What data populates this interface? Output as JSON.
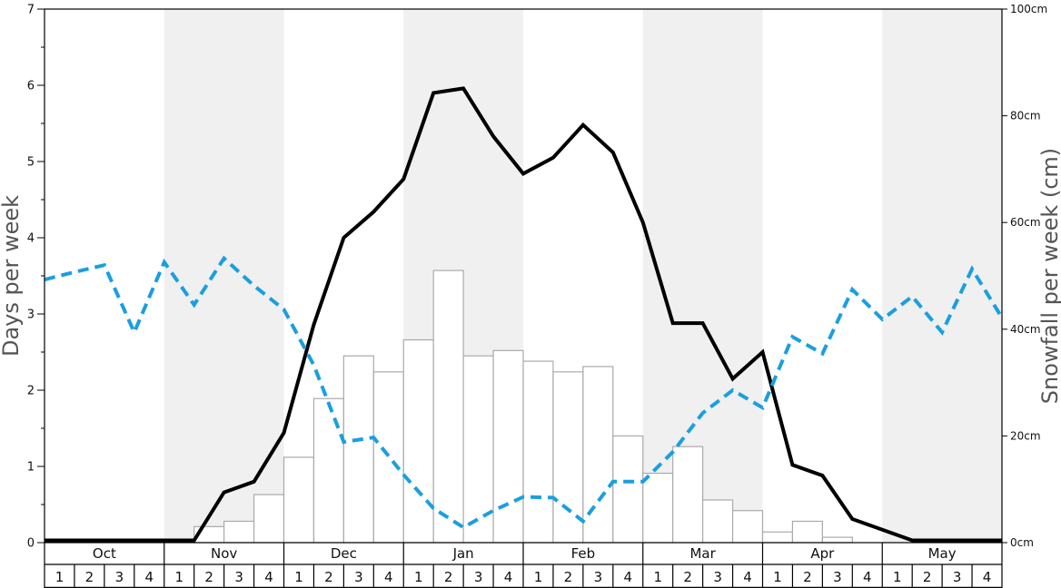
{
  "chart_data": {
    "type": "bar",
    "ylabel": "Days per week",
    "y2label": "Snowfall per week (cm)",
    "ylim": [
      0,
      7
    ],
    "y2lim": [
      0,
      100
    ],
    "yticks": [
      "0",
      "1",
      "2",
      "3",
      "4",
      "5",
      "6",
      "7"
    ],
    "y2ticks": [
      "0cm",
      "20cm",
      "40cm",
      "60cm",
      "80cm",
      "100cm"
    ],
    "months": [
      "Oct",
      "Nov",
      "Dec",
      "Jan",
      "Feb",
      "Mar",
      "Apr",
      "May"
    ],
    "weeks": [
      "1",
      "2",
      "3",
      "4"
    ],
    "shaded_months": [
      "Nov",
      "Jan",
      "Mar",
      "May"
    ],
    "snowfall_cm": [
      0,
      0,
      0,
      0,
      0,
      3,
      4,
      9,
      16,
      27,
      35,
      32,
      38,
      51,
      35,
      36,
      34,
      32,
      33,
      20,
      13,
      18,
      8,
      6,
      2,
      4,
      1,
      0,
      0,
      0,
      0,
      0
    ],
    "series": [
      {
        "style": "solid-black",
        "axis": "left",
        "values": [
          0.03,
          0.03,
          0.03,
          0.03,
          0.03,
          0.03,
          0.66,
          0.8,
          1.44,
          2.86,
          4.0,
          4.34,
          4.77,
          5.9,
          5.96,
          5.33,
          4.84,
          5.05,
          5.48,
          5.12,
          4.2,
          2.88,
          2.88,
          2.15,
          2.5,
          1.02,
          0.88,
          0.31,
          0.17,
          0.03,
          0.03,
          0.03,
          0.03
        ]
      },
      {
        "style": "dashed-blue",
        "axis": "left",
        "values": [
          3.45,
          3.55,
          3.64,
          2.76,
          3.68,
          3.12,
          3.73,
          3.37,
          3.06,
          2.33,
          1.32,
          1.38,
          0.89,
          0.45,
          0.2,
          0.42,
          0.6,
          0.59,
          0.28,
          0.8,
          0.8,
          1.19,
          1.7,
          2.0,
          1.77,
          2.7,
          2.48,
          3.32,
          2.93,
          3.23,
          2.76,
          3.59,
          2.95
        ]
      }
    ],
    "colors": {
      "bar_fill": "#ffffff",
      "bar_stroke": "#aaaaaa",
      "shade": "#f0f0f0",
      "solid_line": "#000000",
      "dashed_line": "#1a9fe0"
    }
  }
}
